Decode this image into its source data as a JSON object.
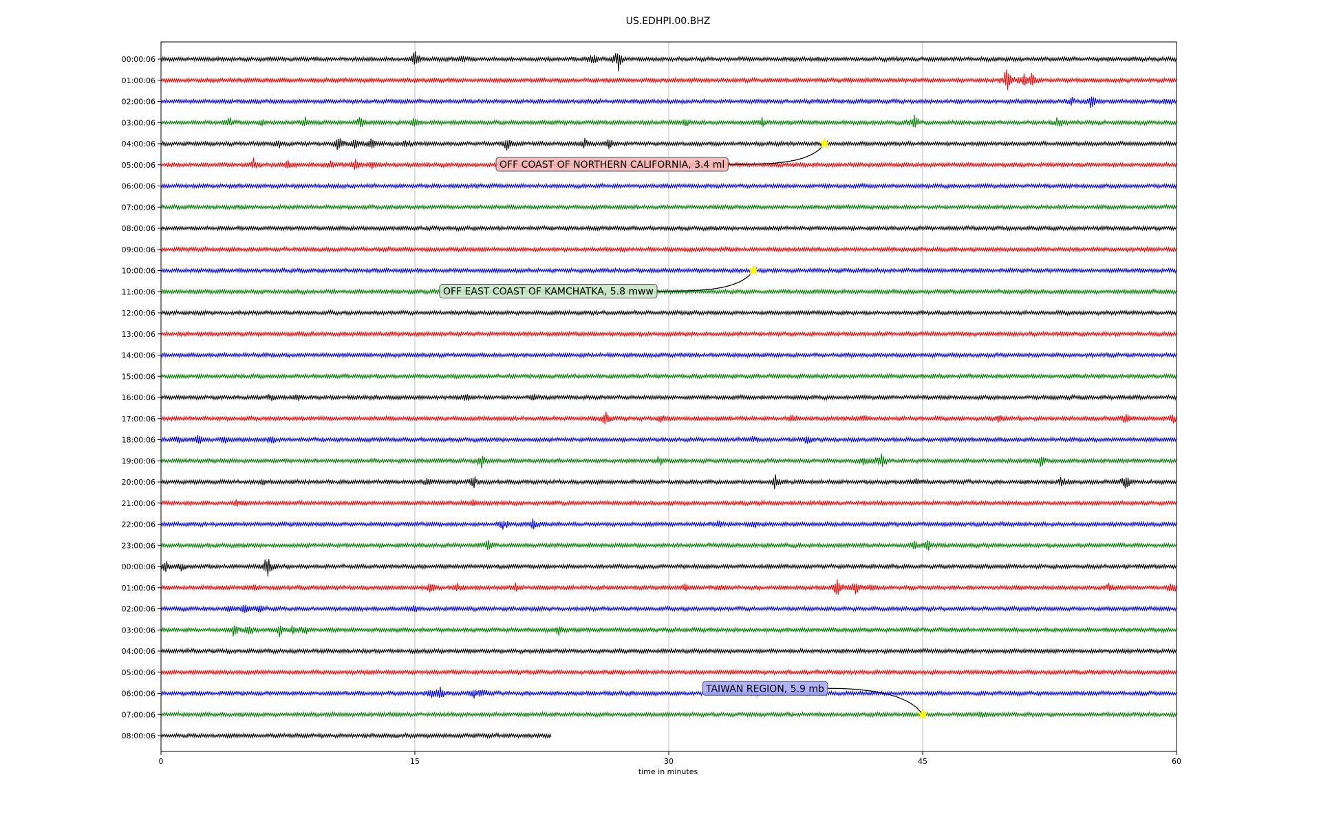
{
  "chart_data": {
    "type": "line",
    "title": "US.EDHPI.00.BHZ",
    "xlabel": "time in minutes",
    "ylabel": "",
    "xlim": [
      0,
      60
    ],
    "xticks": [
      0,
      15,
      30,
      45,
      60
    ],
    "xtick_labels": [
      "0",
      "15",
      "30",
      "45",
      "60"
    ],
    "grid": "vertical",
    "color_cycle": [
      "#000000",
      "#ff0000",
      "#0000ff",
      "#008000"
    ],
    "row_labels": [
      "00:00:06",
      "01:00:06",
      "02:00:06",
      "03:00:06",
      "04:00:06",
      "05:00:06",
      "06:00:06",
      "07:00:06",
      "08:00:06",
      "09:00:06",
      "10:00:06",
      "11:00:06",
      "12:00:06",
      "13:00:06",
      "14:00:06",
      "15:00:06",
      "16:00:06",
      "17:00:06",
      "18:00:06",
      "19:00:06",
      "20:00:06",
      "21:00:06",
      "22:00:06",
      "23:00:06",
      "00:00:06",
      "01:00:06",
      "02:00:06",
      "03:00:06",
      "04:00:06",
      "05:00:06",
      "06:00:06",
      "07:00:06",
      "08:00:06"
    ],
    "last_row_end_minute": 23.1,
    "bursts": [
      {
        "row": 0,
        "t": 15.0,
        "a": 1.0
      },
      {
        "row": 0,
        "t": 17.8,
        "a": 0.3
      },
      {
        "row": 0,
        "t": 27.0,
        "a": 1.4
      },
      {
        "row": 0,
        "t": 25.5,
        "a": 0.7
      },
      {
        "row": 1,
        "t": 50.0,
        "a": 1.5
      },
      {
        "row": 1,
        "t": 51.0,
        "a": 0.9
      },
      {
        "row": 1,
        "t": 51.5,
        "a": 0.7
      },
      {
        "row": 2,
        "t": 55.0,
        "a": 0.8
      },
      {
        "row": 2,
        "t": 53.8,
        "a": 0.5
      },
      {
        "row": 2,
        "t": 59.5,
        "a": 0.5
      },
      {
        "row": 3,
        "t": 4.0,
        "a": 0.5
      },
      {
        "row": 3,
        "t": 6.0,
        "a": 0.4
      },
      {
        "row": 3,
        "t": 8.5,
        "a": 0.7
      },
      {
        "row": 3,
        "t": 11.8,
        "a": 0.7
      },
      {
        "row": 3,
        "t": 15.0,
        "a": 0.7
      },
      {
        "row": 3,
        "t": 31.0,
        "a": 0.4
      },
      {
        "row": 3,
        "t": 35.5,
        "a": 0.5
      },
      {
        "row": 3,
        "t": 44.5,
        "a": 0.8
      },
      {
        "row": 3,
        "t": 53.0,
        "a": 0.6
      },
      {
        "row": 4,
        "t": 7.0,
        "a": 0.5
      },
      {
        "row": 4,
        "t": 10.5,
        "a": 0.8
      },
      {
        "row": 4,
        "t": 11.5,
        "a": 0.7
      },
      {
        "row": 4,
        "t": 12.5,
        "a": 0.6
      },
      {
        "row": 4,
        "t": 14.5,
        "a": 0.5
      },
      {
        "row": 4,
        "t": 20.5,
        "a": 0.9
      },
      {
        "row": 4,
        "t": 25.0,
        "a": 0.6
      },
      {
        "row": 4,
        "t": 26.5,
        "a": 0.7
      },
      {
        "row": 5,
        "t": 5.5,
        "a": 0.7
      },
      {
        "row": 5,
        "t": 7.5,
        "a": 0.5
      },
      {
        "row": 5,
        "t": 10.0,
        "a": 0.5
      },
      {
        "row": 5,
        "t": 11.5,
        "a": 0.6
      },
      {
        "row": 5,
        "t": 12.5,
        "a": 0.5
      },
      {
        "row": 16,
        "t": 6.5,
        "a": 0.5
      },
      {
        "row": 16,
        "t": 8.0,
        "a": 0.4
      },
      {
        "row": 16,
        "t": 18.0,
        "a": 0.5
      },
      {
        "row": 16,
        "t": 22.0,
        "a": 0.4
      },
      {
        "row": 17,
        "t": 26.3,
        "a": 0.7
      },
      {
        "row": 17,
        "t": 29.5,
        "a": 0.5
      },
      {
        "row": 17,
        "t": 37.3,
        "a": 0.6
      },
      {
        "row": 17,
        "t": 41.5,
        "a": 0.5
      },
      {
        "row": 17,
        "t": 49.5,
        "a": 0.4
      },
      {
        "row": 17,
        "t": 57.0,
        "a": 0.6
      },
      {
        "row": 17,
        "t": 59.8,
        "a": 0.4
      },
      {
        "row": 18,
        "t": 1.0,
        "a": 0.4
      },
      {
        "row": 18,
        "t": 2.2,
        "a": 0.5
      },
      {
        "row": 18,
        "t": 3.8,
        "a": 0.4
      },
      {
        "row": 18,
        "t": 6.5,
        "a": 0.4
      },
      {
        "row": 18,
        "t": 35.0,
        "a": 0.3
      },
      {
        "row": 18,
        "t": 38.2,
        "a": 0.5
      },
      {
        "row": 19,
        "t": 19.0,
        "a": 0.8
      },
      {
        "row": 19,
        "t": 29.5,
        "a": 0.5
      },
      {
        "row": 19,
        "t": 42.5,
        "a": 1.3
      },
      {
        "row": 19,
        "t": 41.5,
        "a": 0.6
      },
      {
        "row": 19,
        "t": 52.0,
        "a": 0.8
      },
      {
        "row": 20,
        "t": 6.0,
        "a": 0.3
      },
      {
        "row": 20,
        "t": 15.8,
        "a": 0.4
      },
      {
        "row": 20,
        "t": 18.5,
        "a": 0.8
      },
      {
        "row": 20,
        "t": 36.3,
        "a": 0.7
      },
      {
        "row": 20,
        "t": 44.7,
        "a": 0.4
      },
      {
        "row": 20,
        "t": 53.3,
        "a": 0.6
      },
      {
        "row": 20,
        "t": 57.0,
        "a": 1.1
      },
      {
        "row": 21,
        "t": 4.5,
        "a": 0.4
      },
      {
        "row": 21,
        "t": 18.5,
        "a": 0.4
      },
      {
        "row": 22,
        "t": 20.2,
        "a": 0.8
      },
      {
        "row": 22,
        "t": 22.0,
        "a": 0.7
      },
      {
        "row": 22,
        "t": 33.0,
        "a": 0.3
      },
      {
        "row": 22,
        "t": 35.0,
        "a": 0.4
      },
      {
        "row": 23,
        "t": 19.3,
        "a": 0.6
      },
      {
        "row": 23,
        "t": 44.5,
        "a": 0.4
      },
      {
        "row": 23,
        "t": 45.3,
        "a": 0.6
      },
      {
        "row": 24,
        "t": 0.3,
        "a": 0.6
      },
      {
        "row": 24,
        "t": 1.2,
        "a": 0.5
      },
      {
        "row": 24,
        "t": 6.3,
        "a": 1.3
      },
      {
        "row": 25,
        "t": 5.5,
        "a": 0.4
      },
      {
        "row": 25,
        "t": 16.0,
        "a": 0.5
      },
      {
        "row": 25,
        "t": 17.5,
        "a": 0.4
      },
      {
        "row": 25,
        "t": 21.0,
        "a": 0.4
      },
      {
        "row": 25,
        "t": 31.0,
        "a": 0.5
      },
      {
        "row": 25,
        "t": 33.0,
        "a": 0.3
      },
      {
        "row": 25,
        "t": 40.0,
        "a": 0.9
      },
      {
        "row": 25,
        "t": 41.0,
        "a": 0.9
      },
      {
        "row": 25,
        "t": 42.0,
        "a": 0.4
      },
      {
        "row": 25,
        "t": 56.0,
        "a": 0.5
      },
      {
        "row": 25,
        "t": 59.8,
        "a": 0.7
      },
      {
        "row": 26,
        "t": 4.0,
        "a": 0.4
      },
      {
        "row": 26,
        "t": 5.0,
        "a": 0.6
      },
      {
        "row": 26,
        "t": 5.8,
        "a": 0.6
      },
      {
        "row": 26,
        "t": 15.0,
        "a": 0.5
      },
      {
        "row": 27,
        "t": 4.3,
        "a": 0.8
      },
      {
        "row": 27,
        "t": 5.2,
        "a": 0.6
      },
      {
        "row": 27,
        "t": 7.0,
        "a": 0.8
      },
      {
        "row": 27,
        "t": 7.8,
        "a": 0.6
      },
      {
        "row": 27,
        "t": 8.5,
        "a": 0.5
      },
      {
        "row": 27,
        "t": 23.5,
        "a": 0.6
      },
      {
        "row": 30,
        "t": 16.0,
        "a": 0.6
      },
      {
        "row": 30,
        "t": 16.5,
        "a": 0.7
      },
      {
        "row": 30,
        "t": 18.5,
        "a": 0.6
      },
      {
        "row": 30,
        "t": 19.0,
        "a": 0.5
      },
      {
        "row": 31,
        "t": 48.5,
        "a": 0.3
      }
    ],
    "events": [
      {
        "label": "OFF COAST OF NORTHERN CALIFORNIA, 3.4 ml",
        "row": 4,
        "t": 39.2,
        "box_color": "#f4b6b6",
        "label_side": "left-below"
      },
      {
        "label": "OFF EAST COAST OF KAMCHATKA, 5.8 mww",
        "row": 10,
        "t": 35.0,
        "box_color": "#c8e6c8",
        "label_side": "left-below"
      },
      {
        "label": "TAIWAN REGION, 5.9 mb",
        "row": 31,
        "t": 45.0,
        "box_color": "#a9a9f5",
        "label_side": "left-above"
      }
    ]
  }
}
